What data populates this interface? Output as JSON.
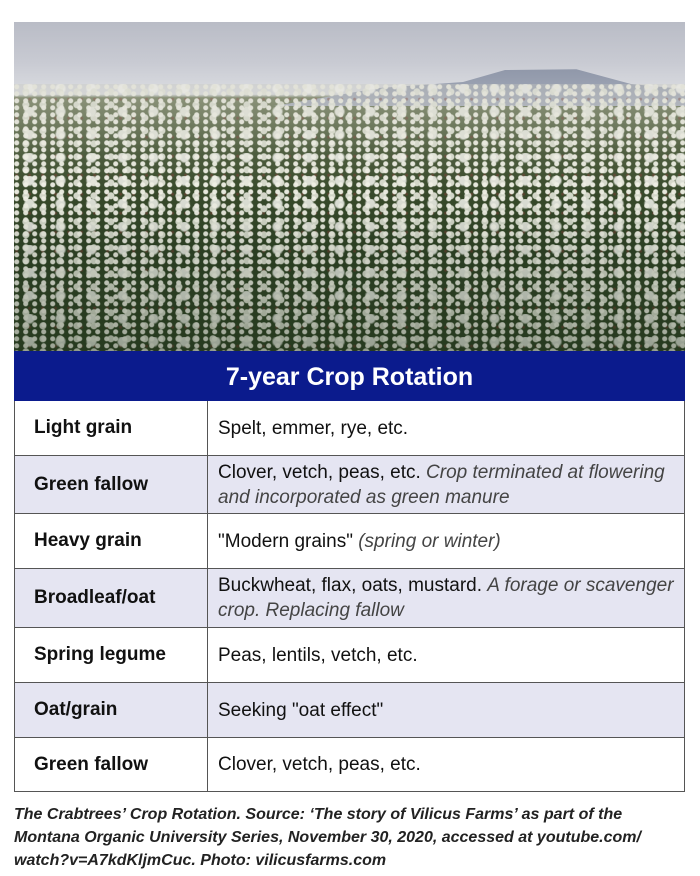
{
  "photo": {
    "subject": "buckwheat field",
    "credit_in_caption": true
  },
  "table": {
    "title": "7-year Crop Rotation",
    "header_color": "#0b1b8d",
    "alt_row_color": "#e5e5f2",
    "rows": [
      {
        "crop": "Light grain",
        "detail": "Spelt, emmer, rye, etc.",
        "note": ""
      },
      {
        "crop": "Green fallow",
        "detail": "Clover, vetch, peas, etc. ",
        "note": "Crop terminated at flowering and incorporated as green manure"
      },
      {
        "crop": "Heavy grain",
        "detail": "\"Modern grains\" ",
        "note": "(spring or winter)"
      },
      {
        "crop": "Broadleaf/oat",
        "detail": "Buckwheat, flax, oats, mustard. ",
        "note": "A forage or scavenger crop. Replacing fallow"
      },
      {
        "crop": "Spring legume",
        "detail": "Peas, lentils, vetch, etc.",
        "note": ""
      },
      {
        "crop": "Oat/grain",
        "detail": "Seeking \"oat effect\"",
        "note": ""
      },
      {
        "crop": "Green fallow",
        "detail": "Clover, vetch, peas, etc.",
        "note": ""
      }
    ]
  },
  "caption": "The Crabtrees’ Crop Rotation. Source: ‘The story of Vilicus Farms’ as part of the Montana Organic University Series, November 30, 2020, accessed at youtube.com/ watch?v=A7kdKljmCuc. Photo: vilicusfarms.com"
}
